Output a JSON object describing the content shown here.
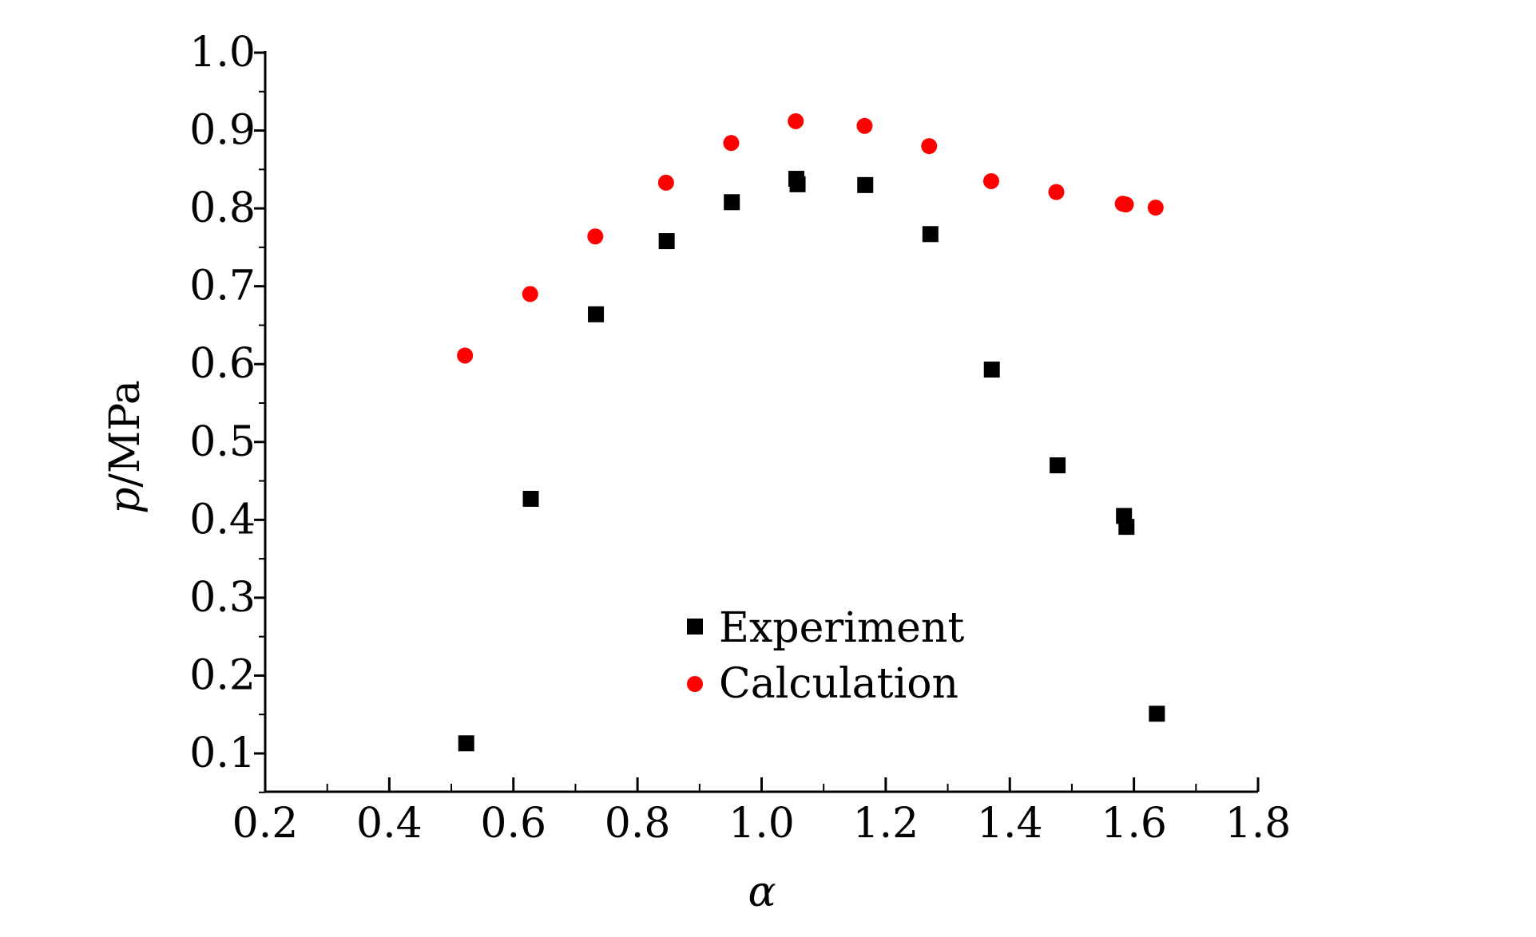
{
  "chart_data": {
    "type": "scatter",
    "title": "",
    "xlabel": "α",
    "ylabel_italic": "p",
    "ylabel_rest": "/MPa",
    "xlim": [
      0.2,
      1.8
    ],
    "ylim": [
      0.05,
      1.0
    ],
    "x_ticks": [
      0.2,
      0.4,
      0.6,
      0.8,
      1.0,
      1.2,
      1.4,
      1.6,
      1.8
    ],
    "x_tick_labels": [
      "0.2",
      "0.4",
      "0.6",
      "0.8",
      "1.0",
      "1.2",
      "1.4",
      "1.6",
      "1.8"
    ],
    "y_ticks": [
      0.1,
      0.2,
      0.3,
      0.4,
      0.5,
      0.6,
      0.7,
      0.8,
      0.9,
      1.0
    ],
    "y_tick_labels": [
      "0.1",
      "0.2",
      "0.3",
      "0.4",
      "0.5",
      "0.6",
      "0.7",
      "0.8",
      "0.9",
      "1.0"
    ],
    "grid": false,
    "legend_position": "center-bottom",
    "series": [
      {
        "name": "Experiment",
        "marker": "square",
        "color": "#000000",
        "points": [
          {
            "x": 0.524,
            "y": 0.113
          },
          {
            "x": 0.628,
            "y": 0.427
          },
          {
            "x": 0.733,
            "y": 0.664
          },
          {
            "x": 0.847,
            "y": 0.758
          },
          {
            "x": 0.952,
            "y": 0.808
          },
          {
            "x": 1.056,
            "y": 0.838
          },
          {
            "x": 1.058,
            "y": 0.831
          },
          {
            "x": 1.167,
            "y": 0.83
          },
          {
            "x": 1.272,
            "y": 0.767
          },
          {
            "x": 1.371,
            "y": 0.593
          },
          {
            "x": 1.477,
            "y": 0.47
          },
          {
            "x": 1.584,
            "y": 0.405
          },
          {
            "x": 1.588,
            "y": 0.391
          },
          {
            "x": 1.637,
            "y": 0.151
          }
        ]
      },
      {
        "name": "Calculation",
        "marker": "circle",
        "color": "#ff0000",
        "points": [
          {
            "x": 0.522,
            "y": 0.611
          },
          {
            "x": 0.627,
            "y": 0.69
          },
          {
            "x": 0.732,
            "y": 0.764
          },
          {
            "x": 0.846,
            "y": 0.833
          },
          {
            "x": 0.951,
            "y": 0.884
          },
          {
            "x": 1.055,
            "y": 0.912
          },
          {
            "x": 1.166,
            "y": 0.906
          },
          {
            "x": 1.27,
            "y": 0.88
          },
          {
            "x": 1.37,
            "y": 0.835
          },
          {
            "x": 1.475,
            "y": 0.821
          },
          {
            "x": 1.582,
            "y": 0.806
          },
          {
            "x": 1.587,
            "y": 0.805
          },
          {
            "x": 1.635,
            "y": 0.801
          }
        ]
      }
    ]
  }
}
